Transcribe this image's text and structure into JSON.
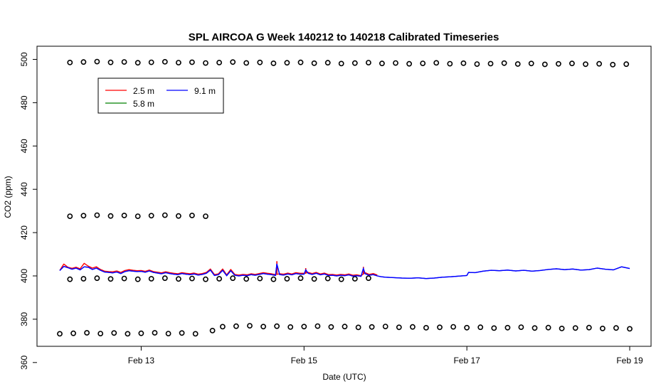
{
  "chart_data": {
    "type": "line",
    "title": "SPL AIRCOA G  Week 140212 to 140218  Calibrated Timeseries",
    "xlabel": "Date (UTC)",
    "ylabel": "CO2 (ppm)",
    "x_range": [
      "2014-02-12T00:00",
      "2014-02-19T00:00"
    ],
    "ylim": [
      346,
      504
    ],
    "x_ticks": [
      {
        "label": "Feb 13",
        "date": "2014-02-13"
      },
      {
        "label": "Feb 15",
        "date": "2014-02-15"
      },
      {
        "label": "Feb 17",
        "date": "2014-02-17"
      },
      {
        "label": "Feb 19",
        "date": "2014-02-19"
      }
    ],
    "y_ticks": [
      360,
      380,
      400,
      420,
      440,
      460,
      480,
      500
    ],
    "grid": false,
    "legend": {
      "position": "top-left",
      "box": true
    },
    "series": [
      {
        "name": "2.5 m",
        "color": "#ff0000",
        "kind": "line",
        "points": [
          [
            "2014-02-12T00:00",
            402.5
          ],
          [
            "2014-02-12T01:12",
            405.5
          ],
          [
            "2014-02-12T02:24",
            404.0
          ],
          [
            "2014-02-12T03:36",
            403.5
          ],
          [
            "2014-02-12T04:48",
            404.0
          ],
          [
            "2014-02-12T06:00",
            403.3
          ],
          [
            "2014-02-12T07:12",
            405.8
          ],
          [
            "2014-02-12T08:24",
            404.5
          ],
          [
            "2014-02-12T09:36",
            403.6
          ],
          [
            "2014-02-12T10:48",
            404.2
          ],
          [
            "2014-02-12T12:00",
            403.0
          ],
          [
            "2014-02-12T13:12",
            402.2
          ],
          [
            "2014-02-12T14:24",
            402.0
          ],
          [
            "2014-02-12T15:36",
            401.9
          ],
          [
            "2014-02-12T16:48",
            402.3
          ],
          [
            "2014-02-12T18:00",
            401.6
          ],
          [
            "2014-02-12T19:12",
            402.5
          ],
          [
            "2014-02-12T20:24",
            402.9
          ],
          [
            "2014-02-12T21:36",
            402.6
          ],
          [
            "2014-02-12T22:48",
            402.4
          ],
          [
            "2014-02-13T00:00",
            402.5
          ],
          [
            "2014-02-13T01:12",
            402.1
          ],
          [
            "2014-02-13T02:24",
            402.7
          ],
          [
            "2014-02-13T03:36",
            402.0
          ],
          [
            "2014-02-13T04:48",
            401.7
          ],
          [
            "2014-02-13T06:00",
            401.4
          ],
          [
            "2014-02-13T07:12",
            401.9
          ],
          [
            "2014-02-13T08:24",
            401.5
          ],
          [
            "2014-02-13T09:36",
            401.2
          ],
          [
            "2014-02-13T10:48",
            401.0
          ],
          [
            "2014-02-13T12:00",
            401.5
          ],
          [
            "2014-02-13T13:12",
            401.2
          ],
          [
            "2014-02-13T14:24",
            401.0
          ],
          [
            "2014-02-13T15:36",
            401.3
          ],
          [
            "2014-02-13T16:48",
            400.8
          ],
          [
            "2014-02-13T18:00",
            401.1
          ],
          [
            "2014-02-13T19:12",
            401.6
          ],
          [
            "2014-02-13T20:24",
            403.2
          ],
          [
            "2014-02-13T21:36",
            400.6
          ],
          [
            "2014-02-13T22:48",
            401.0
          ],
          [
            "2014-02-14T00:00",
            403.2
          ],
          [
            "2014-02-14T01:12",
            400.5
          ],
          [
            "2014-02-14T02:24",
            403.0
          ],
          [
            "2014-02-14T03:36",
            400.7
          ],
          [
            "2014-02-14T04:48",
            400.4
          ],
          [
            "2014-02-14T06:00",
            400.7
          ],
          [
            "2014-02-14T07:12",
            400.5
          ],
          [
            "2014-02-14T08:24",
            401.0
          ],
          [
            "2014-02-14T09:36",
            400.7
          ],
          [
            "2014-02-14T10:48",
            401.1
          ],
          [
            "2014-02-14T12:00",
            401.5
          ],
          [
            "2014-02-14T13:12",
            401.2
          ],
          [
            "2014-02-14T14:24",
            401.0
          ],
          [
            "2014-02-14T15:36",
            400.6
          ],
          [
            "2014-02-14T16:48",
            401.0
          ],
          [
            "2014-02-14T18:00",
            400.8
          ],
          [
            "2014-02-14T19:12",
            401.3
          ],
          [
            "2014-02-14T20:24",
            400.9
          ],
          [
            "2014-02-14T21:36",
            401.5
          ],
          [
            "2014-02-14T22:48",
            401.2
          ],
          [
            "2014-02-15T00:00",
            401.2
          ],
          [
            "2014-02-15T01:12",
            401.6
          ],
          [
            "2014-02-15T02:24",
            401.1
          ],
          [
            "2014-02-15T03:36",
            401.6
          ],
          [
            "2014-02-15T04:48",
            400.9
          ],
          [
            "2014-02-15T06:00",
            401.3
          ],
          [
            "2014-02-15T07:12",
            400.6
          ],
          [
            "2014-02-15T08:24",
            400.7
          ],
          [
            "2014-02-15T09:36",
            400.4
          ],
          [
            "2014-02-15T10:48",
            400.7
          ],
          [
            "2014-02-15T12:00",
            400.5
          ],
          [
            "2014-02-15T13:12",
            400.9
          ],
          [
            "2014-02-15T14:24",
            400.3
          ],
          [
            "2014-02-15T15:36",
            400.5
          ],
          [
            "2014-02-15T16:48",
            400.1
          ],
          [
            "2014-02-15T18:00",
            401.5
          ],
          [
            "2014-02-15T19:12",
            400.7
          ],
          [
            "2014-02-15T20:24",
            401.1
          ],
          [
            "2014-02-15T21:36",
            400.4
          ]
        ],
        "spikes": [
          [
            "2014-02-14T16:00",
            406.8
          ],
          [
            "2014-02-15T00:30",
            403.6
          ],
          [
            "2014-02-15T17:30",
            404.2
          ]
        ]
      },
      {
        "name": "5.8 m",
        "color": "#008000",
        "kind": "line",
        "points": []
      },
      {
        "name": "9.1 m",
        "color": "#0000ff",
        "kind": "line",
        "points": [
          [
            "2014-02-12T00:00",
            402.5
          ],
          [
            "2014-02-12T01:12",
            404.4
          ],
          [
            "2014-02-12T02:24",
            403.8
          ],
          [
            "2014-02-12T03:36",
            403.1
          ],
          [
            "2014-02-12T04:48",
            403.6
          ],
          [
            "2014-02-12T06:00",
            402.8
          ],
          [
            "2014-02-12T07:12",
            404.2
          ],
          [
            "2014-02-12T08:24",
            404.0
          ],
          [
            "2014-02-12T09:36",
            403.0
          ],
          [
            "2014-02-12T10:48",
            403.6
          ],
          [
            "2014-02-12T12:00",
            402.6
          ],
          [
            "2014-02-12T13:12",
            401.8
          ],
          [
            "2014-02-12T14:24",
            401.6
          ],
          [
            "2014-02-12T15:36",
            401.4
          ],
          [
            "2014-02-12T16:48",
            401.8
          ],
          [
            "2014-02-12T18:00",
            401.1
          ],
          [
            "2014-02-12T19:12",
            402.0
          ],
          [
            "2014-02-12T20:24",
            402.4
          ],
          [
            "2014-02-12T21:36",
            402.2
          ],
          [
            "2014-02-12T22:48",
            402.0
          ],
          [
            "2014-02-13T00:00",
            402.1
          ],
          [
            "2014-02-13T01:12",
            401.7
          ],
          [
            "2014-02-13T02:24",
            402.3
          ],
          [
            "2014-02-13T03:36",
            401.6
          ],
          [
            "2014-02-13T04:48",
            401.3
          ],
          [
            "2014-02-13T06:00",
            401.0
          ],
          [
            "2014-02-13T07:12",
            401.5
          ],
          [
            "2014-02-13T08:24",
            401.1
          ],
          [
            "2014-02-13T09:36",
            400.8
          ],
          [
            "2014-02-13T10:48",
            400.6
          ],
          [
            "2014-02-13T12:00",
            401.1
          ],
          [
            "2014-02-13T13:12",
            400.8
          ],
          [
            "2014-02-13T14:24",
            400.6
          ],
          [
            "2014-02-13T15:36",
            400.9
          ],
          [
            "2014-02-13T16:48",
            400.4
          ],
          [
            "2014-02-13T18:00",
            400.7
          ],
          [
            "2014-02-13T19:12",
            401.2
          ],
          [
            "2014-02-13T20:24",
            402.7
          ],
          [
            "2014-02-13T21:36",
            400.2
          ],
          [
            "2014-02-13T22:48",
            400.6
          ],
          [
            "2014-02-14T00:00",
            402.6
          ],
          [
            "2014-02-14T01:12",
            400.1
          ],
          [
            "2014-02-14T02:24",
            402.4
          ],
          [
            "2014-02-14T03:36",
            400.3
          ],
          [
            "2014-02-14T04:48",
            400.0
          ],
          [
            "2014-02-14T06:00",
            400.3
          ],
          [
            "2014-02-14T07:12",
            400.1
          ],
          [
            "2014-02-14T08:24",
            400.6
          ],
          [
            "2014-02-14T09:36",
            400.3
          ],
          [
            "2014-02-14T10:48",
            400.7
          ],
          [
            "2014-02-14T12:00",
            401.1
          ],
          [
            "2014-02-14T13:12",
            400.8
          ],
          [
            "2014-02-14T14:24",
            400.6
          ],
          [
            "2014-02-14T15:36",
            400.2
          ],
          [
            "2014-02-14T16:00",
            405.5
          ],
          [
            "2014-02-14T16:48",
            400.6
          ],
          [
            "2014-02-14T18:00",
            400.4
          ],
          [
            "2014-02-14T19:12",
            400.9
          ],
          [
            "2014-02-14T20:24",
            400.5
          ],
          [
            "2014-02-14T21:36",
            401.1
          ],
          [
            "2014-02-14T22:48",
            400.8
          ],
          [
            "2014-02-15T00:00",
            400.8
          ],
          [
            "2014-02-15T00:30",
            402.8
          ],
          [
            "2014-02-15T01:12",
            401.2
          ],
          [
            "2014-02-15T02:24",
            400.7
          ],
          [
            "2014-02-15T03:36",
            401.2
          ],
          [
            "2014-02-15T04:48",
            400.5
          ],
          [
            "2014-02-15T06:00",
            400.9
          ],
          [
            "2014-02-15T07:12",
            400.2
          ],
          [
            "2014-02-15T08:24",
            400.3
          ],
          [
            "2014-02-15T09:36",
            400.0
          ],
          [
            "2014-02-15T10:48",
            400.3
          ],
          [
            "2014-02-15T12:00",
            400.1
          ],
          [
            "2014-02-15T13:12",
            400.5
          ],
          [
            "2014-02-15T14:24",
            399.9
          ],
          [
            "2014-02-15T15:36",
            400.1
          ],
          [
            "2014-02-15T16:48",
            399.8
          ],
          [
            "2014-02-15T17:30",
            403.4
          ],
          [
            "2014-02-15T18:00",
            401.0
          ],
          [
            "2014-02-15T19:12",
            400.3
          ],
          [
            "2014-02-15T20:24",
            400.6
          ],
          [
            "2014-02-15T21:36",
            400.0
          ],
          [
            "2014-02-15T22:48",
            399.6
          ],
          [
            "2014-02-16T00:00",
            399.4
          ],
          [
            "2014-02-16T02:24",
            399.2
          ],
          [
            "2014-02-16T04:48",
            399.0
          ],
          [
            "2014-02-16T07:12",
            398.9
          ],
          [
            "2014-02-16T09:36",
            399.1
          ],
          [
            "2014-02-16T12:00",
            398.8
          ],
          [
            "2014-02-16T14:24",
            399.0
          ],
          [
            "2014-02-16T16:48",
            399.4
          ],
          [
            "2014-02-16T19:12",
            399.6
          ],
          [
            "2014-02-16T21:36",
            399.9
          ],
          [
            "2014-02-17T00:00",
            400.2
          ],
          [
            "2014-02-17T00:30",
            401.6
          ],
          [
            "2014-02-17T02:24",
            401.5
          ],
          [
            "2014-02-17T04:48",
            402.2
          ],
          [
            "2014-02-17T07:12",
            402.6
          ],
          [
            "2014-02-17T09:36",
            402.4
          ],
          [
            "2014-02-17T12:00",
            402.7
          ],
          [
            "2014-02-17T14:24",
            402.3
          ],
          [
            "2014-02-17T16:48",
            402.6
          ],
          [
            "2014-02-17T19:12",
            402.2
          ],
          [
            "2014-02-17T21:36",
            402.5
          ],
          [
            "2014-02-18T00:00",
            403.0
          ],
          [
            "2014-02-18T02:24",
            403.3
          ],
          [
            "2014-02-18T04:48",
            402.9
          ],
          [
            "2014-02-18T07:12",
            403.2
          ],
          [
            "2014-02-18T09:36",
            402.7
          ],
          [
            "2014-02-18T12:00",
            402.9
          ],
          [
            "2014-02-18T14:24",
            403.6
          ],
          [
            "2014-02-18T16:48",
            403.1
          ],
          [
            "2014-02-18T19:12",
            402.8
          ],
          [
            "2014-02-18T21:36",
            404.2
          ],
          [
            "2014-02-19T00:00",
            403.4
          ]
        ]
      }
    ],
    "calibration_points": {
      "marker": "open-circle",
      "color": "#000000",
      "groups": [
        {
          "level": 498.8,
          "from": "2014-02-12T03:00",
          "to": "2014-02-19T00:00",
          "step_hours": 4,
          "end_level": 497.8
        },
        {
          "level": 427.8,
          "from": "2014-02-12T03:00",
          "to": "2014-02-13T22:00",
          "step_hours": 4
        },
        {
          "level": 398.7,
          "from": "2014-02-12T03:00",
          "to": "2014-02-15T20:00",
          "step_hours": 4
        },
        {
          "level": 373.5,
          "from": "2014-02-12T00:00",
          "to": "2014-02-13T19:00",
          "step_hours": 4
        },
        {
          "level": 375.0,
          "from": "2014-02-13T21:00",
          "to": "2014-02-13T21:00",
          "step_hours": 4
        },
        {
          "level": 376.8,
          "from": "2014-02-14T00:00",
          "to": "2014-02-19T00:00",
          "step_hours": 4,
          "end_level": 375.8
        }
      ]
    }
  }
}
